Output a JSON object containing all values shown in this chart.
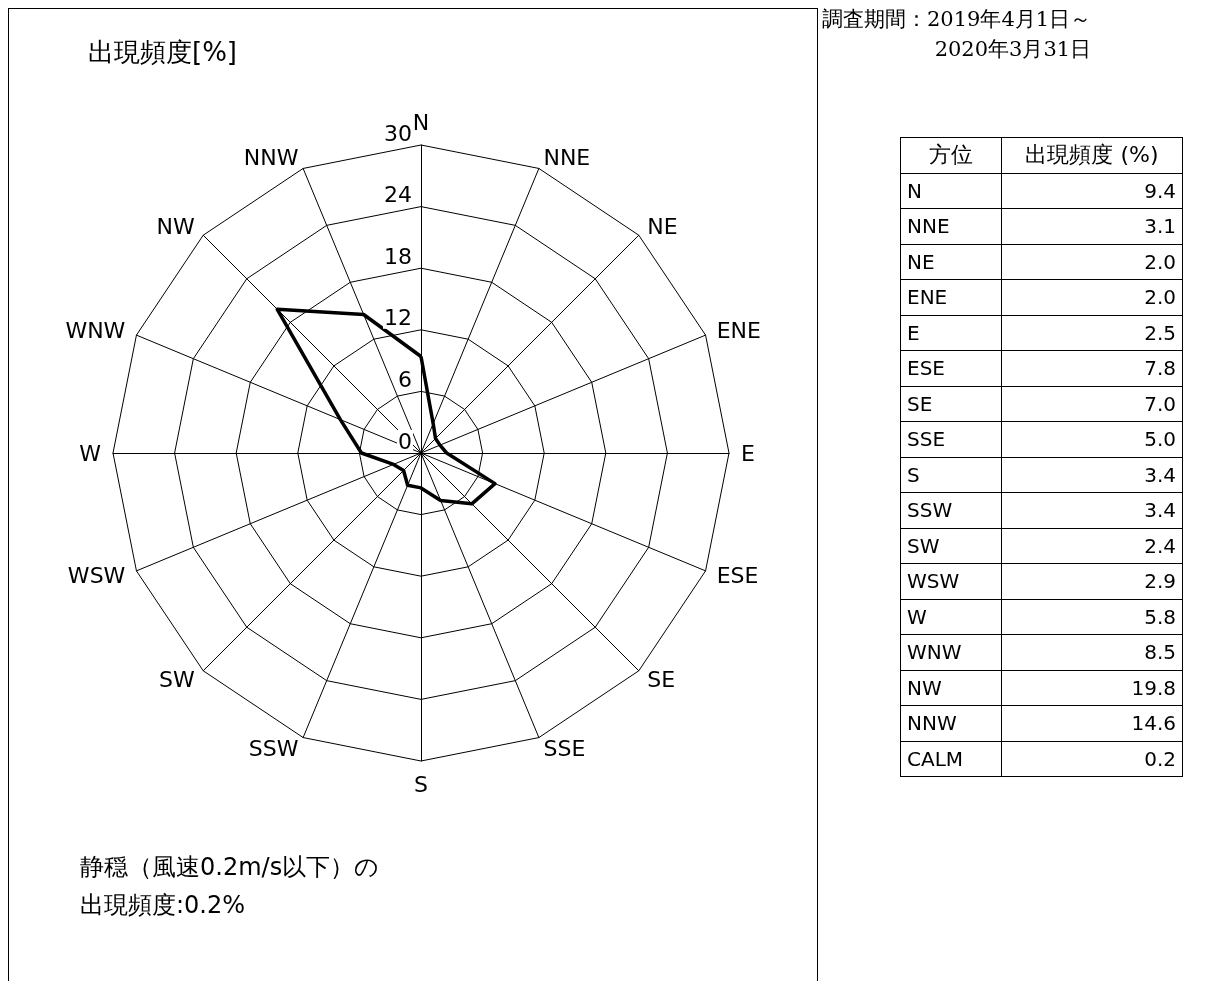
{
  "chart_data": {
    "type": "radar",
    "title": "出現頻度[%]",
    "categories": [
      "N",
      "NNE",
      "NE",
      "ENE",
      "E",
      "ESE",
      "SE",
      "SSE",
      "S",
      "SSW",
      "SW",
      "WSW",
      "W",
      "WNW",
      "NW",
      "NNW"
    ],
    "series": [
      {
        "color": "#000000",
        "values": [
          9.4,
          3.1,
          2.0,
          2.0,
          2.5,
          7.8,
          7.0,
          5.0,
          3.4,
          3.4,
          2.4,
          2.9,
          5.8,
          8.5,
          19.8,
          14.6
        ]
      }
    ],
    "value_labels": [
      "9.4",
      "3.1",
      "2.0",
      "2.0",
      "2.5",
      "7.8",
      "7.0",
      "5.0",
      "3.4",
      "3.4",
      "2.4",
      "2.9",
      "5.8",
      "8.5",
      "19.8",
      "14.6"
    ],
    "ylim": [
      0,
      30
    ],
    "yticks": [
      0,
      6,
      12,
      18,
      24,
      30
    ],
    "marker": "none",
    "line_style": "solid",
    "grid": true,
    "annotations": [
      "調査期間：2019年4月1日～\n2020年3月31日",
      "静穏（風速0.2m/s以下）の出現頻度:0.2%",
      "方位",
      "出現頻度 (%)",
      "CALM",
      "0.2"
    ]
  }
}
